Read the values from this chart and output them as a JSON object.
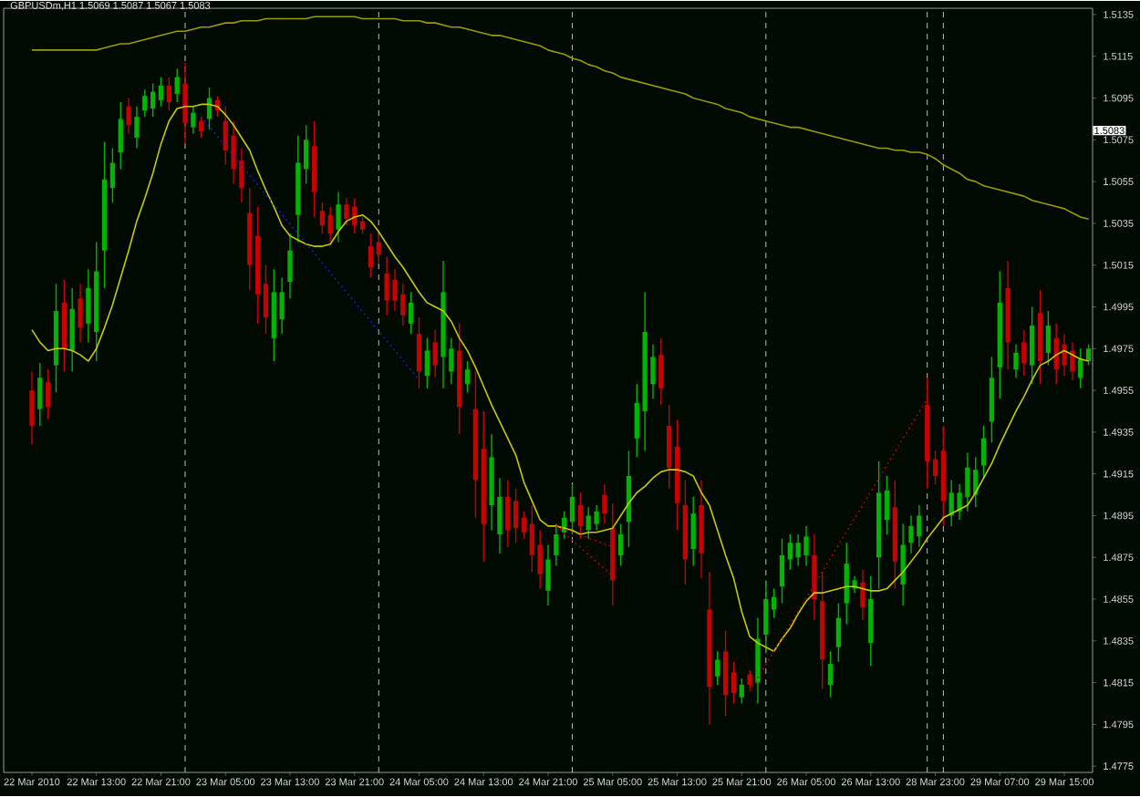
{
  "chart_data": {
    "type": "candlestick",
    "title": "GBPUSDm,H1  1.5069 1.5087 1.5067 1.5083",
    "categories": [
      "22 Mar 2010",
      null,
      null,
      null,
      null,
      null,
      null,
      null,
      "22 Mar 13:00",
      null,
      null,
      null,
      null,
      null,
      null,
      null,
      "22 Mar 21:00",
      null,
      null,
      null,
      null,
      null,
      null,
      null,
      "23 Mar 05:00",
      null,
      null,
      null,
      null,
      null,
      null,
      null,
      "23 Mar 13:00",
      null,
      null,
      null,
      null,
      null,
      null,
      null,
      "23 Mar 21:00",
      null,
      null,
      null,
      null,
      null,
      null,
      null,
      "24 Mar 05:00",
      null,
      null,
      null,
      null,
      null,
      null,
      null,
      "24 Mar 13:00",
      null,
      null,
      null,
      null,
      null,
      null,
      null,
      "24 Mar 21:00",
      null,
      null,
      null,
      null,
      null,
      null,
      null,
      "25 Mar 05:00",
      null,
      null,
      null,
      null,
      null,
      null,
      null,
      "25 Mar 13:00",
      null,
      null,
      null,
      null,
      null,
      null,
      null,
      "25 Mar 21:00",
      null,
      null,
      null,
      null,
      null,
      null,
      null,
      "26 Mar 05:00",
      null,
      null,
      null,
      null,
      null,
      null,
      null,
      "26 Mar 13:00",
      null,
      null,
      null,
      null,
      null,
      null,
      null,
      "28 Mar 23:00",
      null,
      null,
      null,
      null,
      null,
      null,
      null,
      "29 Mar 07:00",
      null,
      null,
      null,
      null,
      null,
      null,
      null,
      "29 Mar 15:00",
      null,
      null,
      null
    ],
    "ylim": [
      1.4772,
      1.5138
    ],
    "yticks": [
      1.5135,
      1.5115,
      1.5095,
      1.5075,
      1.5055,
      1.5035,
      1.5015,
      1.4995,
      1.4975,
      1.4955,
      1.4935,
      1.4915,
      1.4895,
      1.4875,
      1.4855,
      1.4835,
      1.4815,
      1.4795,
      1.4775
    ],
    "series": [
      {
        "ohlc": [
          [
            1.4955,
            1.4964,
            1.4929,
            1.4938
          ],
          [
            1.4946,
            1.4968,
            1.4938,
            1.4961
          ],
          [
            1.4959,
            1.4965,
            1.4941,
            1.4947
          ],
          [
            1.4967,
            1.5006,
            1.4954,
            1.4993
          ],
          [
            1.4997,
            1.5008,
            1.4964,
            1.4975
          ],
          [
            1.4974,
            1.5004,
            1.4964,
            1.4994
          ],
          [
            1.4999,
            1.5006,
            1.4978,
            1.4985
          ],
          [
            1.4987,
            1.5013,
            1.4978,
            1.5004
          ],
          [
            1.4983,
            1.5026,
            1.4969,
            1.5012
          ],
          [
            1.5022,
            1.5074,
            1.5004,
            1.5056
          ],
          [
            1.5052,
            1.5071,
            1.5045,
            1.5064
          ],
          [
            1.5069,
            1.5093,
            1.5061,
            1.5085
          ],
          [
            1.5091,
            1.5095,
            1.5078,
            1.5082
          ],
          [
            1.5076,
            1.5091,
            1.5071,
            1.5086
          ],
          [
            1.5089,
            1.5099,
            1.5086,
            1.5096
          ],
          [
            1.509,
            1.5102,
            1.5086,
            1.5098
          ],
          [
            1.5094,
            1.5105,
            1.5091,
            1.5101
          ],
          [
            1.5101,
            1.5105,
            1.5089,
            1.5093
          ],
          [
            1.5097,
            1.5109,
            1.5093,
            1.5105
          ],
          [
            1.5102,
            1.5112,
            1.5073,
            1.5083
          ],
          [
            1.5081,
            1.5091,
            1.5078,
            1.5088
          ],
          [
            1.5084,
            1.5086,
            1.5076,
            1.5079
          ],
          [
            1.5085,
            1.51,
            1.508,
            1.5095
          ],
          [
            1.5094,
            1.5096,
            1.5086,
            1.5089
          ],
          [
            1.5084,
            1.5091,
            1.5063,
            1.507
          ],
          [
            1.5077,
            1.5084,
            1.5054,
            1.5061
          ],
          [
            1.5065,
            1.5071,
            1.5045,
            1.5052
          ],
          [
            1.504,
            1.5052,
            1.5003,
            1.5015
          ],
          [
            1.5029,
            1.5043,
            1.4987,
            1.5001
          ],
          [
            1.5006,
            1.5015,
            1.4982,
            1.499
          ],
          [
            1.498,
            1.5013,
            1.4969,
            1.5002
          ],
          [
            1.4989,
            1.5009,
            1.4982,
            1.5002
          ],
          [
            1.5007,
            1.503,
            1.4999,
            1.5022
          ],
          [
            1.5039,
            1.5077,
            1.5026,
            1.5064
          ],
          [
            1.5061,
            1.5082,
            1.5054,
            1.5075
          ],
          [
            1.5072,
            1.5084,
            1.5038,
            1.505
          ],
          [
            1.5041,
            1.5045,
            1.503,
            1.5034
          ],
          [
            1.5039,
            1.5043,
            1.5026,
            1.503
          ],
          [
            1.5032,
            1.505,
            1.5026,
            1.5044
          ],
          [
            1.5044,
            1.5047,
            1.5034,
            1.5037
          ],
          [
            1.5043,
            1.5047,
            1.503,
            1.5034
          ],
          [
            1.5036,
            1.5038,
            1.503,
            1.5032
          ],
          [
            1.5024,
            1.503,
            1.5009,
            1.5014
          ],
          [
            1.5026,
            1.503,
            1.5016,
            1.502
          ],
          [
            1.5011,
            1.5019,
            1.4991,
            1.4998
          ],
          [
            1.5008,
            1.5013,
            1.4993,
            1.4998
          ],
          [
            1.5001,
            1.5006,
            1.4986,
            1.4991
          ],
          [
            1.4987,
            1.5002,
            1.4982,
            1.4997
          ],
          [
            1.4982,
            1.499,
            1.4956,
            1.4964
          ],
          [
            1.4962,
            1.498,
            1.4956,
            1.4974
          ],
          [
            1.4978,
            1.4984,
            1.4961,
            1.4967
          ],
          [
            1.4971,
            1.5017,
            1.4956,
            1.5002
          ],
          [
            1.4964,
            1.498,
            1.4958,
            1.4975
          ],
          [
            1.4974,
            1.4987,
            1.4934,
            1.4947
          ],
          [
            1.4958,
            1.4969,
            1.4954,
            1.4965
          ],
          [
            1.4946,
            1.4964,
            1.4894,
            1.4912
          ],
          [
            1.4927,
            1.4945,
            1.4873,
            1.4891
          ],
          [
            1.49,
            1.4934,
            1.4888,
            1.4923
          ],
          [
            1.4886,
            1.4913,
            1.4877,
            1.4904
          ],
          [
            1.4904,
            1.4912,
            1.488,
            1.4888
          ],
          [
            1.4902,
            1.4908,
            1.4882,
            1.4889
          ],
          [
            1.4894,
            1.4897,
            1.4884,
            1.4887
          ],
          [
            1.4891,
            1.49,
            1.4868,
            1.4876
          ],
          [
            1.4881,
            1.4888,
            1.486,
            1.4867
          ],
          [
            1.4859,
            1.4881,
            1.4852,
            1.4874
          ],
          [
            1.4876,
            1.4891,
            1.4871,
            1.4886
          ],
          [
            1.4887,
            1.4897,
            1.4884,
            1.4894
          ],
          [
            1.4892,
            1.491,
            1.4886,
            1.4904
          ],
          [
            1.49,
            1.4906,
            1.4884,
            1.489
          ],
          [
            1.4888,
            1.4899,
            1.4884,
            1.4895
          ],
          [
            1.4891,
            1.49,
            1.4888,
            1.4897
          ],
          [
            1.4905,
            1.491,
            1.4891,
            1.4896
          ],
          [
            1.4889,
            1.4901,
            1.4852,
            1.4864
          ],
          [
            1.4876,
            1.4891,
            1.4871,
            1.4886
          ],
          [
            1.4892,
            1.4926,
            1.488,
            1.4914
          ],
          [
            1.4932,
            1.4958,
            1.4923,
            1.4949
          ],
          [
            1.4945,
            1.5002,
            1.4926,
            1.4983
          ],
          [
            1.4958,
            1.4977,
            1.4951,
            1.4971
          ],
          [
            1.4972,
            1.498,
            1.4948,
            1.4956
          ],
          [
            1.4938,
            1.4948,
            1.4908,
            1.4918
          ],
          [
            1.4928,
            1.4941,
            1.4888,
            1.4901
          ],
          [
            1.49,
            1.4912,
            1.4862,
            1.4874
          ],
          [
            1.4879,
            1.4904,
            1.4871,
            1.4896
          ],
          [
            1.49,
            1.4912,
            1.4865,
            1.4877
          ],
          [
            1.485,
            1.4868,
            1.4795,
            1.4813
          ],
          [
            1.4818,
            1.483,
            1.4814,
            1.4826
          ],
          [
            1.483,
            1.484,
            1.4799,
            1.4809
          ],
          [
            1.482,
            1.4825,
            1.4805,
            1.481
          ],
          [
            1.4808,
            1.4817,
            1.4805,
            1.4814
          ],
          [
            1.4819,
            1.4821,
            1.4812,
            1.4814
          ],
          [
            1.4815,
            1.4846,
            1.4805,
            1.4836
          ],
          [
            1.4838,
            1.4864,
            1.4829,
            1.4855
          ],
          [
            1.485,
            1.486,
            1.4846,
            1.4856
          ],
          [
            1.4861,
            1.4884,
            1.4853,
            1.4876
          ],
          [
            1.4874,
            1.4886,
            1.4869,
            1.4882
          ],
          [
            1.4875,
            1.4886,
            1.4871,
            1.4882
          ],
          [
            1.4876,
            1.489,
            1.4871,
            1.4885
          ],
          [
            1.4876,
            1.4886,
            1.4845,
            1.4855
          ],
          [
            1.4854,
            1.4868,
            1.4812,
            1.4826
          ],
          [
            1.4814,
            1.483,
            1.4808,
            1.4824
          ],
          [
            1.4832,
            1.4853,
            1.4825,
            1.4846
          ],
          [
            1.4853,
            1.4882,
            1.4843,
            1.4872
          ],
          [
            1.486,
            1.4866,
            1.4858,
            1.4864
          ],
          [
            1.4863,
            1.4869,
            1.4845,
            1.4851
          ],
          [
            1.4834,
            1.4866,
            1.4823,
            1.4855
          ],
          [
            1.4875,
            1.4921,
            1.486,
            1.4906
          ],
          [
            1.4893,
            1.4914,
            1.4886,
            1.4907
          ],
          [
            1.4899,
            1.4912,
            1.486,
            1.4873
          ],
          [
            1.4862,
            1.4891,
            1.4852,
            1.4881
          ],
          [
            1.4882,
            1.4895,
            1.4877,
            1.489
          ],
          [
            1.4885,
            1.49,
            1.488,
            1.4895
          ],
          [
            1.4948,
            1.4961,
            1.4908,
            1.4921
          ],
          [
            1.4922,
            1.4926,
            1.491,
            1.4914
          ],
          [
            1.4926,
            1.4938,
            1.489,
            1.4902
          ],
          [
            1.4895,
            1.4912,
            1.489,
            1.4906
          ],
          [
            1.4897,
            1.491,
            1.4893,
            1.4906
          ],
          [
            1.4904,
            1.4925,
            1.4897,
            1.4918
          ],
          [
            1.4905,
            1.4923,
            1.4899,
            1.4917
          ],
          [
            1.4919,
            1.4938,
            1.4913,
            1.4932
          ],
          [
            1.494,
            1.4971,
            1.493,
            1.4961
          ],
          [
            1.4966,
            1.5012,
            1.4951,
            1.4997
          ],
          [
            1.5004,
            1.5017,
            1.4965,
            1.4978
          ],
          [
            1.4965,
            1.4977,
            1.4961,
            1.4973
          ],
          [
            1.4978,
            1.4984,
            1.4962,
            1.4968
          ],
          [
            1.4967,
            1.4995,
            1.4958,
            1.4986
          ],
          [
            1.4992,
            1.5003,
            1.4958,
            1.4969
          ],
          [
            1.4973,
            1.4993,
            1.4967,
            1.4986
          ],
          [
            1.498,
            1.4987,
            1.4958,
            1.4965
          ],
          [
            1.4977,
            1.4982,
            1.4962,
            1.4967
          ],
          [
            1.4974,
            1.4978,
            1.496,
            1.4964
          ],
          [
            1.4961,
            1.4975,
            1.4956,
            1.497
          ],
          [
            1.4969,
            1.4977,
            1.4967,
            1.4975
          ]
        ],
        "colors": [
          "#c80000",
          "#00b400",
          "#c80000",
          "#00b400",
          "#c80000",
          "#00b400",
          "#c80000",
          "#00b400",
          "#00b400",
          "#00b400",
          "#00b400",
          "#00b400",
          "#c80000",
          "#00b400",
          "#00b400",
          "#00b400",
          "#00b400",
          "#c80000",
          "#00b400",
          "#c80000",
          "#00b400",
          "#c80000",
          "#00b400",
          "#c80000",
          "#c80000",
          "#c80000",
          "#c80000",
          "#c80000",
          "#c80000",
          "#c80000",
          "#00b400",
          "#00b400",
          "#00b400",
          "#00b400",
          "#00b400",
          "#c80000",
          "#c80000",
          "#c80000",
          "#00b400",
          "#c80000",
          "#c80000",
          "#c80000",
          "#c80000",
          "#c80000",
          "#c80000",
          "#c80000",
          "#c80000",
          "#00b400",
          "#c80000",
          "#00b400",
          "#c80000",
          "#00b400",
          "#00b400",
          "#c80000",
          "#00b400",
          "#c80000",
          "#c80000",
          "#00b400",
          "#00b400",
          "#c80000",
          "#c80000",
          "#c80000",
          "#c80000",
          "#c80000",
          "#00b400",
          "#00b400",
          "#00b400",
          "#00b400",
          "#c80000",
          "#00b400",
          "#00b400",
          "#c80000",
          "#c80000",
          "#00b400",
          "#00b400",
          "#00b400",
          "#00b400",
          "#00b400",
          "#c80000",
          "#c80000",
          "#c80000",
          "#c80000",
          "#00b400",
          "#c80000",
          "#c80000",
          "#00b400",
          "#c80000",
          "#c80000",
          "#00b400",
          "#c80000",
          "#00b400",
          "#00b400",
          "#00b400",
          "#00b400",
          "#00b400",
          "#00b400",
          "#00b400",
          "#c80000",
          "#c80000",
          "#00b400",
          "#00b400",
          "#00b400",
          "#00b400",
          "#c80000",
          "#00b400",
          "#00b400",
          "#00b400",
          "#c80000",
          "#00b400",
          "#00b400",
          "#00b400",
          "#c80000",
          "#c80000",
          "#c80000",
          "#00b400",
          "#00b400",
          "#00b400",
          "#00b400",
          "#00b400",
          "#00b400",
          "#00b400",
          "#c80000",
          "#00b400",
          "#c80000",
          "#00b400",
          "#c80000",
          "#00b400",
          "#c80000",
          "#c80000",
          "#c80000",
          "#00b400",
          "#00b400"
        ]
      },
      {
        "type": "line",
        "color": "#c8c800",
        "values": [
          1.4984,
          1.4978,
          1.4974,
          1.4975,
          1.4975,
          1.4974,
          1.4972,
          1.4969,
          1.4975,
          1.4985,
          1.4996,
          1.5009,
          1.5022,
          1.5036,
          1.5047,
          1.5059,
          1.5073,
          1.5084,
          1.509,
          1.5091,
          1.5091,
          1.5092,
          1.5092,
          1.5091,
          1.5087,
          1.5082,
          1.5076,
          1.507,
          1.506,
          1.5051,
          1.5043,
          1.5034,
          1.5029,
          1.5027,
          1.5025,
          1.5024,
          1.5024,
          1.5025,
          1.5031,
          1.5036,
          1.5038,
          1.5039,
          1.5036,
          1.5031,
          1.5025,
          1.5019,
          1.5014,
          1.5008,
          1.5002,
          1.4997,
          1.4995,
          1.4993,
          1.4988,
          1.498,
          1.4974,
          1.4966,
          1.4957,
          1.4948,
          1.494,
          1.4932,
          1.4924,
          1.4911,
          1.4902,
          1.4893,
          1.489,
          1.489,
          1.4889,
          1.4888,
          1.4886,
          1.4887,
          1.4887,
          1.4888,
          1.4889,
          1.4895,
          1.4901,
          1.4906,
          1.4909,
          1.4913,
          1.4916,
          1.4917,
          1.4917,
          1.4916,
          1.4914,
          1.4906,
          1.49,
          1.4888,
          1.4876,
          1.4865,
          1.4849,
          1.4837,
          1.4834,
          1.4832,
          1.483,
          1.4836,
          1.4841,
          1.4848,
          1.4854,
          1.4858,
          1.4858,
          1.4859,
          1.486,
          1.4861,
          1.4861,
          1.486,
          1.4859,
          1.4859,
          1.486,
          1.4864,
          1.4868,
          1.4873,
          1.4878,
          1.4884,
          1.4889,
          1.4894,
          1.4896,
          1.4898,
          1.49,
          1.4906,
          1.4913,
          1.492,
          1.4929,
          1.4937,
          1.4945,
          1.4952,
          1.496,
          1.4967,
          1.4969,
          1.4972,
          1.4974,
          1.4972,
          1.497,
          1.4969
        ]
      },
      {
        "type": "line",
        "color": "#9a9a00",
        "values": [
          1.5118,
          1.5118,
          1.5118,
          1.5118,
          1.5118,
          1.5118,
          1.5118,
          1.5118,
          1.5118,
          1.5119,
          1.512,
          1.5121,
          1.5121,
          1.5122,
          1.5123,
          1.5124,
          1.5125,
          1.5126,
          1.5127,
          1.5127,
          1.5128,
          1.5129,
          1.5129,
          1.513,
          1.5131,
          1.5131,
          1.5132,
          1.5132,
          1.5132,
          1.5133,
          1.5133,
          1.5133,
          1.5133,
          1.5133,
          1.5133,
          1.5134,
          1.5134,
          1.5134,
          1.5134,
          1.5134,
          1.5134,
          1.5133,
          1.5133,
          1.5133,
          1.5133,
          1.5133,
          1.5132,
          1.5132,
          1.5132,
          1.5131,
          1.5131,
          1.513,
          1.5129,
          1.5129,
          1.5128,
          1.5127,
          1.5126,
          1.5125,
          1.5125,
          1.5124,
          1.5123,
          1.5122,
          1.5121,
          1.512,
          1.5118,
          1.5117,
          1.5116,
          1.5114,
          1.5113,
          1.5111,
          1.511,
          1.5108,
          1.5107,
          1.5105,
          1.5104,
          1.5103,
          1.5102,
          1.5101,
          1.51,
          1.5099,
          1.5098,
          1.5097,
          1.5095,
          1.5094,
          1.5093,
          1.5092,
          1.509,
          1.5089,
          1.5088,
          1.5086,
          1.5085,
          1.5084,
          1.5083,
          1.5082,
          1.5081,
          1.5081,
          1.508,
          1.5079,
          1.5078,
          1.5077,
          1.5076,
          1.5075,
          1.5074,
          1.5073,
          1.5072,
          1.5071,
          1.5071,
          1.507,
          1.507,
          1.5069,
          1.5069,
          1.5068,
          1.5066,
          1.5063,
          1.5061,
          1.5059,
          1.5056,
          1.5055,
          1.5053,
          1.5052,
          1.5051,
          1.505,
          1.5049,
          1.5048,
          1.5046,
          1.5045,
          1.5044,
          1.5043,
          1.5042,
          1.504,
          1.5038,
          1.5037
        ]
      },
      {
        "type": "line",
        "color": "#2020d0",
        "line_style": "dotted",
        "values": [
          null,
          null,
          null,
          null,
          null,
          null,
          null,
          null,
          null,
          null,
          null,
          null,
          null,
          null,
          null,
          null,
          null,
          null,
          null,
          null,
          null,
          1.5086,
          null,
          null,
          null,
          null,
          null,
          null,
          null,
          null,
          null,
          null,
          null,
          null,
          null,
          null,
          null,
          null,
          null,
          null,
          null,
          null,
          null,
          null,
          null,
          null,
          null,
          null,
          1.496,
          null,
          null,
          null,
          null,
          null,
          null,
          null,
          null,
          null,
          null,
          null,
          null,
          null,
          null,
          null,
          null,
          null,
          null,
          null,
          null,
          null,
          null,
          null,
          null,
          null,
          null,
          null,
          null,
          null,
          null,
          null,
          null,
          null,
          null,
          null,
          null,
          null,
          null,
          null,
          null,
          null,
          null,
          null,
          null,
          null,
          null,
          null,
          null,
          null,
          null,
          null,
          null,
          null,
          null,
          null,
          null,
          null,
          null,
          null,
          null,
          null,
          null,
          null,
          null,
          null,
          null,
          null,
          null,
          null,
          null,
          null,
          null,
          null,
          null,
          null,
          null,
          null,
          null,
          null,
          null,
          null,
          null,
          null
        ]
      },
      {
        "type": "line",
        "color": "#c80000",
        "line_style": "dotted",
        "values": [
          null,
          null,
          null,
          null,
          null,
          null,
          null,
          null,
          null,
          null,
          null,
          null,
          null,
          null,
          null,
          null,
          null,
          null,
          null,
          null,
          null,
          null,
          null,
          null,
          null,
          null,
          null,
          null,
          null,
          null,
          null,
          null,
          null,
          null,
          null,
          null,
          null,
          null,
          null,
          null,
          null,
          null,
          null,
          null,
          null,
          null,
          null,
          null,
          null,
          null,
          null,
          null,
          null,
          null,
          null,
          null,
          null,
          null,
          null,
          null,
          null,
          null,
          null,
          null,
          null,
          1.489,
          null,
          null,
          null,
          null,
          null,
          null,
          1.4866,
          null,
          null,
          null,
          null,
          null,
          null,
          null,
          null,
          null,
          null,
          null,
          null,
          null,
          null,
          null,
          null,
          null,
          null,
          null,
          null,
          null,
          null,
          null,
          null,
          null,
          null,
          null,
          null,
          null,
          null,
          null,
          null,
          null,
          null,
          null,
          null,
          null,
          null,
          null,
          null,
          null,
          null,
          null,
          null,
          null,
          null,
          null,
          null,
          null,
          null,
          null,
          null,
          null,
          null,
          null,
          null,
          null,
          null,
          null
        ]
      },
      {
        "type": "line",
        "color": "#c80000",
        "line_style": "dotted",
        "values": [
          null,
          null,
          null,
          null,
          null,
          null,
          null,
          null,
          null,
          null,
          null,
          null,
          null,
          null,
          null,
          null,
          null,
          null,
          null,
          null,
          null,
          null,
          null,
          null,
          null,
          null,
          null,
          null,
          null,
          null,
          null,
          null,
          null,
          null,
          null,
          null,
          null,
          null,
          null,
          null,
          null,
          null,
          null,
          null,
          null,
          null,
          null,
          null,
          null,
          null,
          null,
          null,
          null,
          null,
          null,
          null,
          null,
          null,
          null,
          null,
          null,
          null,
          null,
          null,
          null,
          1.489,
          null,
          null,
          null,
          null,
          null,
          null,
          1.488,
          null,
          null,
          null,
          null,
          null,
          null,
          null,
          null,
          null,
          null,
          null,
          null,
          null,
          null,
          null,
          null,
          null,
          null,
          null,
          null,
          null,
          null,
          null,
          null,
          null,
          null,
          null,
          null,
          null,
          null,
          null,
          null,
          null,
          null,
          null,
          null,
          null,
          null,
          null,
          null,
          null,
          null,
          null,
          null,
          null,
          null,
          null,
          null,
          null,
          null,
          null,
          null,
          null,
          null,
          null,
          null,
          null,
          null,
          null
        ]
      },
      {
        "type": "line",
        "color": "#c80000",
        "line_style": "dotted",
        "values": [
          null,
          null,
          null,
          null,
          null,
          null,
          null,
          null,
          null,
          null,
          null,
          null,
          null,
          null,
          null,
          null,
          null,
          null,
          null,
          null,
          null,
          null,
          null,
          null,
          null,
          null,
          null,
          null,
          null,
          null,
          null,
          null,
          null,
          null,
          null,
          null,
          null,
          null,
          null,
          null,
          null,
          null,
          null,
          null,
          null,
          null,
          null,
          null,
          null,
          null,
          null,
          null,
          null,
          null,
          null,
          null,
          null,
          null,
          null,
          null,
          null,
          null,
          null,
          null,
          null,
          null,
          null,
          null,
          null,
          null,
          null,
          null,
          null,
          null,
          null,
          null,
          null,
          null,
          null,
          null,
          null,
          null,
          null,
          null,
          null,
          null,
          null,
          null,
          null,
          1.4811,
          null,
          null,
          null,
          null,
          null,
          null,
          null,
          null,
          null,
          null,
          null,
          null,
          null,
          null,
          null,
          null,
          null,
          null,
          null,
          null,
          null,
          1.4951,
          null,
          null,
          null,
          null,
          null,
          null,
          null,
          null,
          null,
          null,
          null,
          null,
          null,
          null,
          null,
          null,
          null,
          null,
          null,
          null
        ]
      }
    ],
    "annotations": [
      "1.5083"
    ]
  }
}
